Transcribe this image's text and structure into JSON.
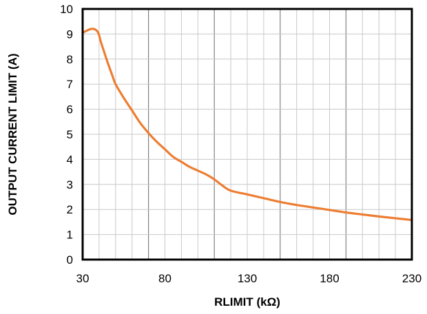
{
  "chart_data": {
    "type": "line",
    "title": "",
    "xlabel": "RLIMIT  (kΩ)",
    "ylabel": "OUTPUT  CURRENT  LIMIT (A)",
    "xlim": [
      30,
      230
    ],
    "ylim": [
      0,
      10
    ],
    "x_ticks": [
      30,
      80,
      130,
      180,
      230
    ],
    "x_tick_labels": [
      "30",
      "80",
      "130",
      "180",
      "230"
    ],
    "y_ticks": [
      0,
      1,
      2,
      3,
      4,
      5,
      6,
      7,
      8,
      9,
      10
    ],
    "y_tick_labels": [
      "0",
      "1",
      "2",
      "3",
      "4",
      "5",
      "6",
      "7",
      "8",
      "9",
      "10"
    ],
    "grid": true,
    "legend": "none",
    "series": [
      {
        "color": "#ED7D31",
        "x": [
          30,
          33,
          35,
          37,
          39,
          40,
          41,
          43,
          45,
          48,
          50,
          55,
          60,
          65,
          70,
          75,
          80,
          85,
          90,
          95,
          100,
          105,
          110,
          115,
          120,
          130,
          140,
          150,
          160,
          170,
          180,
          190,
          200,
          210,
          220,
          230
        ],
        "y": [
          9.05,
          9.15,
          9.2,
          9.2,
          9.1,
          8.95,
          8.7,
          8.3,
          7.9,
          7.35,
          7.0,
          6.45,
          5.95,
          5.45,
          5.05,
          4.7,
          4.4,
          4.1,
          3.9,
          3.7,
          3.55,
          3.4,
          3.2,
          2.95,
          2.75,
          2.6,
          2.45,
          2.3,
          2.18,
          2.08,
          1.98,
          1.88,
          1.8,
          1.72,
          1.65,
          1.58
        ]
      }
    ]
  }
}
